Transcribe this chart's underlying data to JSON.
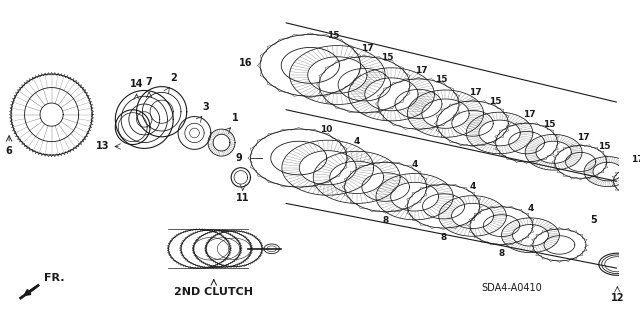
{
  "background_color": "#ffffff",
  "diagram_code": "SDA4-A0410",
  "label_2nd_clutch": "2ND CLUTCH",
  "fr_label": "FR.",
  "fig_width": 6.4,
  "fig_height": 3.19,
  "dark": "#1a1a1a",
  "line_color": "#333333"
}
